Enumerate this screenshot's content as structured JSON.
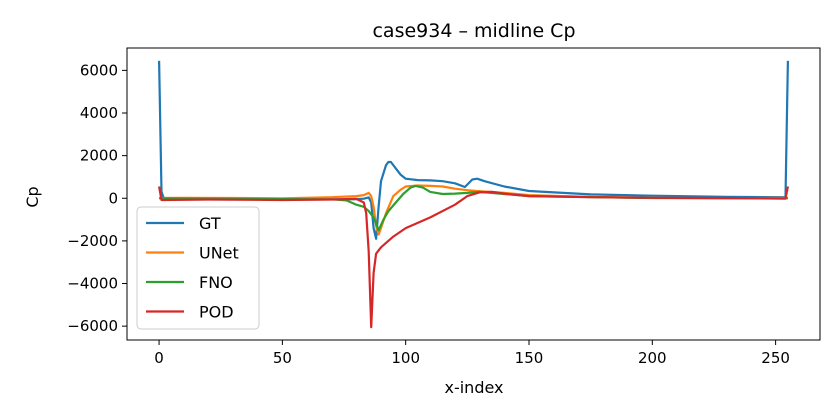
{
  "chart_data": {
    "type": "line",
    "title": "case934 – midline Cp",
    "xlabel": "x-index",
    "ylabel": "Cp",
    "xlim": [
      -13,
      268
    ],
    "ylim": [
      -6650,
      7050
    ],
    "xticks": [
      0,
      50,
      100,
      150,
      200,
      250
    ],
    "yticks": [
      -6000,
      -4000,
      -2000,
      0,
      2000,
      4000,
      6000
    ],
    "yticklabels": [
      "−6000",
      "−4000",
      "−2000",
      "0",
      "2000",
      "4000",
      "6000"
    ],
    "grid": false,
    "legend": "lower-left",
    "series": [
      {
        "name": "GT",
        "color": "#1f77b4",
        "points": [
          [
            0,
            6450
          ],
          [
            1,
            300
          ],
          [
            2,
            -30
          ],
          [
            20,
            -30
          ],
          [
            40,
            -40
          ],
          [
            60,
            -50
          ],
          [
            75,
            -50
          ],
          [
            80,
            -40
          ],
          [
            83,
            -20
          ],
          [
            85,
            40
          ],
          [
            86,
            -200
          ],
          [
            87,
            -1400
          ],
          [
            88,
            -1900
          ],
          [
            89,
            -400
          ],
          [
            90,
            800
          ],
          [
            92,
            1550
          ],
          [
            93,
            1700
          ],
          [
            94,
            1700
          ],
          [
            96,
            1400
          ],
          [
            98,
            1100
          ],
          [
            100,
            920
          ],
          [
            105,
            850
          ],
          [
            110,
            840
          ],
          [
            115,
            800
          ],
          [
            120,
            700
          ],
          [
            124,
            530
          ],
          [
            127,
            880
          ],
          [
            129,
            920
          ],
          [
            132,
            800
          ],
          [
            140,
            550
          ],
          [
            150,
            340
          ],
          [
            175,
            180
          ],
          [
            200,
            120
          ],
          [
            230,
            70
          ],
          [
            254,
            50
          ],
          [
            255,
            6450
          ]
        ]
      },
      {
        "name": "UNet",
        "color": "#ff7f0e",
        "points": [
          [
            0,
            10
          ],
          [
            10,
            20
          ],
          [
            30,
            10
          ],
          [
            50,
            0
          ],
          [
            70,
            50
          ],
          [
            80,
            100
          ],
          [
            83,
            150
          ],
          [
            85,
            250
          ],
          [
            86,
            100
          ],
          [
            87,
            -400
          ],
          [
            88,
            -1300
          ],
          [
            89,
            -1700
          ],
          [
            90,
            -1400
          ],
          [
            92,
            -700
          ],
          [
            95,
            100
          ],
          [
            98,
            400
          ],
          [
            100,
            550
          ],
          [
            105,
            600
          ],
          [
            110,
            580
          ],
          [
            115,
            550
          ],
          [
            120,
            450
          ],
          [
            125,
            380
          ],
          [
            130,
            330
          ],
          [
            140,
            250
          ],
          [
            150,
            150
          ],
          [
            175,
            60
          ],
          [
            200,
            20
          ],
          [
            230,
            0
          ],
          [
            255,
            20
          ]
        ]
      },
      {
        "name": "FNO",
        "color": "#2ca02c",
        "points": [
          [
            0,
            0
          ],
          [
            20,
            -20
          ],
          [
            50,
            -40
          ],
          [
            70,
            -50
          ],
          [
            76,
            -100
          ],
          [
            80,
            -300
          ],
          [
            83,
            -400
          ],
          [
            85,
            -600
          ],
          [
            87,
            -900
          ],
          [
            88,
            -1200
          ],
          [
            89,
            -1500
          ],
          [
            91,
            -1000
          ],
          [
            93,
            -600
          ],
          [
            96,
            -200
          ],
          [
            99,
            200
          ],
          [
            102,
            500
          ],
          [
            104,
            580
          ],
          [
            107,
            500
          ],
          [
            110,
            300
          ],
          [
            115,
            200
          ],
          [
            120,
            220
          ],
          [
            125,
            250
          ],
          [
            130,
            300
          ],
          [
            140,
            200
          ],
          [
            150,
            100
          ],
          [
            200,
            10
          ],
          [
            255,
            0
          ]
        ]
      },
      {
        "name": "POD",
        "color": "#d62728",
        "points": [
          [
            0,
            550
          ],
          [
            1,
            -80
          ],
          [
            20,
            -60
          ],
          [
            50,
            -80
          ],
          [
            70,
            -60
          ],
          [
            80,
            -30
          ],
          [
            83,
            -200
          ],
          [
            84,
            -700
          ],
          [
            85,
            -2500
          ],
          [
            86,
            -6050
          ],
          [
            87,
            -3500
          ],
          [
            88,
            -2600
          ],
          [
            90,
            -2300
          ],
          [
            95,
            -1800
          ],
          [
            100,
            -1400
          ],
          [
            110,
            -900
          ],
          [
            120,
            -300
          ],
          [
            125,
            100
          ],
          [
            130,
            280
          ],
          [
            135,
            300
          ],
          [
            140,
            220
          ],
          [
            150,
            100
          ],
          [
            175,
            50
          ],
          [
            200,
            20
          ],
          [
            230,
            10
          ],
          [
            254,
            -20
          ],
          [
            255,
            550
          ]
        ]
      }
    ]
  }
}
